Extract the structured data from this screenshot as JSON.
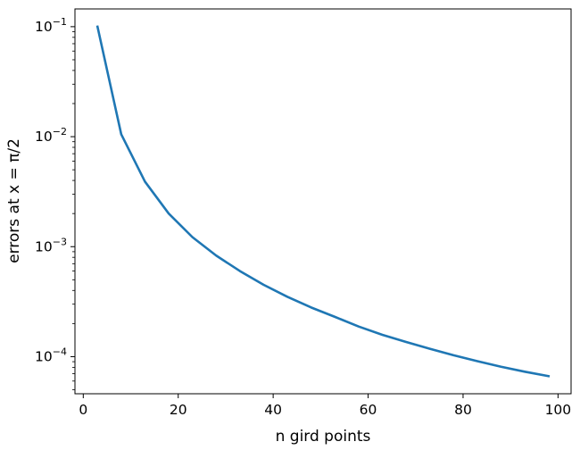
{
  "chart_data": {
    "type": "line",
    "xlabel": "n gird points",
    "ylabel": "errors at x = π/2",
    "xlim": [
      -1.75,
      102.75
    ],
    "ylim": [
      4.6e-05,
      0.145
    ],
    "yscale": "log",
    "grid": false,
    "x_ticks": [
      0,
      20,
      40,
      60,
      80,
      100
    ],
    "y_ticks": [
      {
        "value": 0.0001,
        "base": "10",
        "exp": "−4"
      },
      {
        "value": 0.001,
        "base": "10",
        "exp": "−3"
      },
      {
        "value": 0.01,
        "base": "10",
        "exp": "−2"
      },
      {
        "value": 0.1,
        "base": "10",
        "exp": "−1"
      }
    ],
    "series": [
      {
        "color": "#1f77b4",
        "x": [
          3,
          8,
          13,
          18,
          23,
          28,
          33,
          38,
          43,
          48,
          53,
          58,
          63,
          68,
          73,
          78,
          83,
          88,
          93,
          98
        ],
        "values": [
          0.1,
          0.0105,
          0.0039,
          0.002,
          0.00122,
          0.00083,
          0.0006,
          0.00045,
          0.00035,
          0.00028,
          0.00023,
          0.000188,
          0.000158,
          0.000136,
          0.000118,
          0.000103,
          9.1e-05,
          8.1e-05,
          7.3e-05,
          6.65e-05
        ]
      }
    ]
  }
}
